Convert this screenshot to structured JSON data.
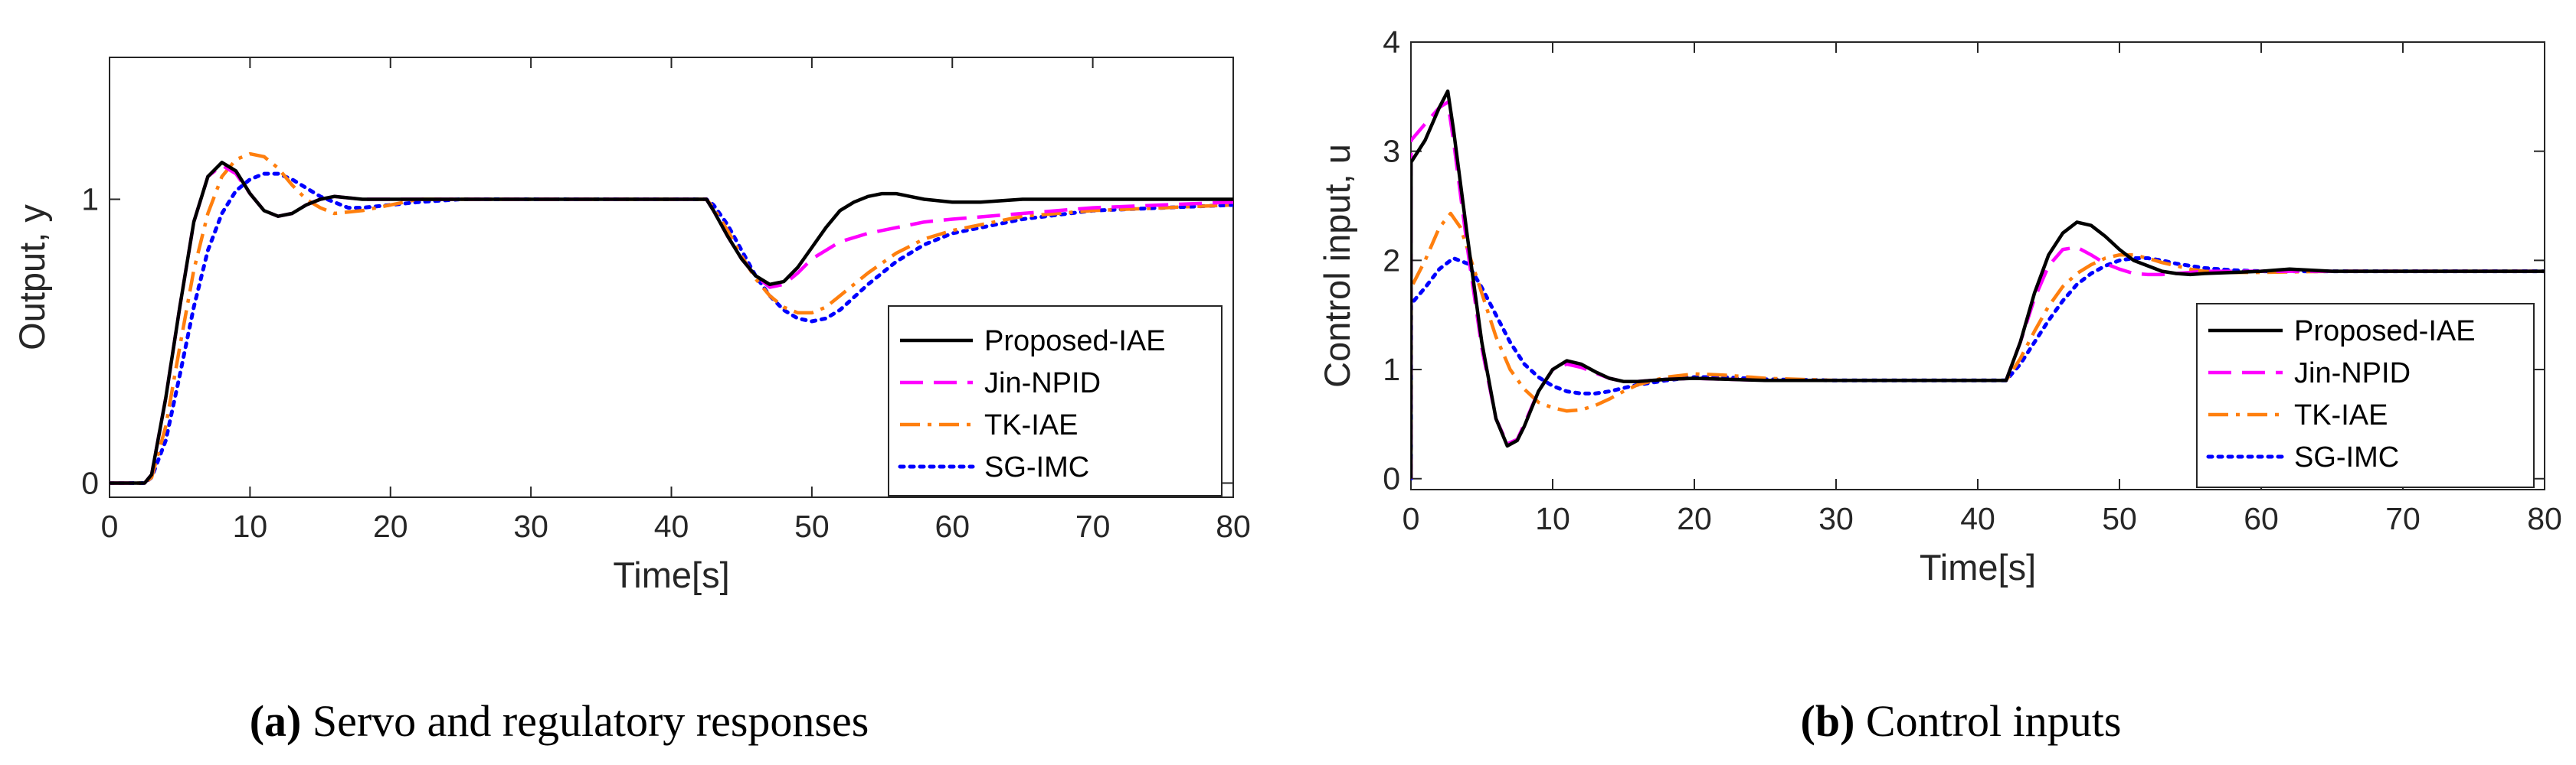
{
  "figure": {
    "captions": [
      {
        "tag": "(a)",
        "text": " Servo and regulatory responses"
      },
      {
        "tag": "(b)",
        "text": " Control inputs"
      }
    ]
  },
  "chart_data": [
    {
      "type": "line",
      "id": "a",
      "title": "",
      "xlabel": "Time[s]",
      "ylabel": "Output, y",
      "xlim": [
        0,
        80
      ],
      "ylim": [
        -0.05,
        1.5
      ],
      "xticks": [
        0,
        10,
        20,
        30,
        40,
        50,
        60,
        70,
        80
      ],
      "yticks": [
        0,
        1
      ],
      "grid": false,
      "legend_position": "bottom-right",
      "series": [
        {
          "name": "Proposed-IAE",
          "color": "#000000",
          "dash": "solid",
          "x": [
            0,
            2.5,
            3,
            4,
            5,
            6,
            7,
            8,
            9,
            10,
            11,
            12,
            13,
            14,
            15,
            16,
            18,
            20,
            25,
            30,
            35,
            40,
            42.5,
            43,
            44,
            45,
            46,
            47,
            48,
            49,
            50,
            51,
            52,
            53,
            54,
            55,
            56,
            57,
            58,
            60,
            62,
            65,
            70,
            75,
            80
          ],
          "y": [
            0,
            0,
            0.03,
            0.3,
            0.62,
            0.92,
            1.08,
            1.13,
            1.1,
            1.02,
            0.96,
            0.94,
            0.95,
            0.98,
            1.0,
            1.01,
            1.0,
            1.0,
            1.0,
            1.0,
            1.0,
            1.0,
            1.0,
            0.96,
            0.87,
            0.79,
            0.73,
            0.7,
            0.71,
            0.76,
            0.83,
            0.9,
            0.96,
            0.99,
            1.01,
            1.02,
            1.02,
            1.01,
            1.0,
            0.99,
            0.99,
            1.0,
            1.0,
            1.0,
            1.0
          ]
        },
        {
          "name": "Jin-NPID",
          "color": "#ff00ff",
          "dash": "dashed",
          "x": [
            0,
            2.5,
            3,
            4,
            5,
            6,
            7,
            8,
            9,
            10,
            11,
            12,
            13,
            14,
            15,
            16,
            18,
            20,
            25,
            30,
            35,
            40,
            42.5,
            43,
            44,
            45,
            46,
            47,
            48,
            49,
            50,
            52,
            54,
            56,
            58,
            60,
            65,
            70,
            75,
            80
          ],
          "y": [
            0,
            0,
            0.03,
            0.3,
            0.62,
            0.92,
            1.08,
            1.12,
            1.09,
            1.02,
            0.96,
            0.94,
            0.95,
            0.98,
            1.0,
            1.01,
            1.0,
            1.0,
            1.0,
            1.0,
            1.0,
            1.0,
            1.0,
            0.96,
            0.87,
            0.79,
            0.73,
            0.69,
            0.7,
            0.74,
            0.79,
            0.85,
            0.88,
            0.9,
            0.92,
            0.93,
            0.95,
            0.97,
            0.98,
            0.99
          ]
        },
        {
          "name": "TK-IAE",
          "color": "#ff7f0e",
          "dash": "dashdot",
          "x": [
            0,
            2.5,
            3,
            4,
            5,
            6,
            7,
            8,
            9,
            10,
            11,
            12,
            13,
            14,
            15,
            16,
            18,
            20,
            22,
            25,
            30,
            40,
            42.5,
            43,
            44,
            45,
            46,
            47,
            48,
            49,
            50,
            51,
            52,
            54,
            56,
            58,
            60,
            65,
            70,
            75,
            80
          ],
          "y": [
            0,
            0,
            0.02,
            0.2,
            0.48,
            0.75,
            0.95,
            1.08,
            1.14,
            1.16,
            1.15,
            1.11,
            1.05,
            1.0,
            0.97,
            0.95,
            0.96,
            0.98,
            1.0,
            1.0,
            1.0,
            1.0,
            1.0,
            0.97,
            0.89,
            0.8,
            0.72,
            0.66,
            0.62,
            0.6,
            0.6,
            0.62,
            0.66,
            0.74,
            0.81,
            0.86,
            0.89,
            0.94,
            0.96,
            0.97,
            0.98
          ]
        },
        {
          "name": "SG-IMC",
          "color": "#0000ff",
          "dash": "dotted",
          "x": [
            0,
            2.5,
            3,
            4,
            5,
            6,
            7,
            8,
            9,
            10,
            11,
            12,
            13,
            14,
            15,
            16,
            17,
            18,
            20,
            22,
            25,
            30,
            40,
            42.5,
            43,
            44,
            45,
            46,
            47,
            48,
            49,
            50,
            51,
            52,
            54,
            56,
            58,
            60,
            65,
            70,
            75,
            80
          ],
          "y": [
            0,
            0,
            0.02,
            0.15,
            0.38,
            0.62,
            0.82,
            0.95,
            1.03,
            1.07,
            1.09,
            1.09,
            1.07,
            1.04,
            1.01,
            0.99,
            0.97,
            0.97,
            0.98,
            0.99,
            1.0,
            1.0,
            1.0,
            1.0,
            0.98,
            0.91,
            0.82,
            0.73,
            0.66,
            0.61,
            0.58,
            0.57,
            0.58,
            0.61,
            0.7,
            0.78,
            0.84,
            0.88,
            0.93,
            0.96,
            0.97,
            0.98
          ]
        }
      ]
    },
    {
      "type": "line",
      "id": "b",
      "title": "",
      "xlabel": "Time[s]",
      "ylabel": "Control input, u",
      "xlim": [
        0,
        80
      ],
      "ylim": [
        -0.1,
        4
      ],
      "xticks": [
        0,
        10,
        20,
        30,
        40,
        50,
        60,
        70,
        80
      ],
      "yticks": [
        0,
        1,
        2,
        3,
        4
      ],
      "grid": false,
      "legend_position": "bottom-right",
      "series": [
        {
          "name": "Proposed-IAE",
          "color": "#000000",
          "dash": "solid",
          "x": [
            0,
            0.01,
            1,
            2,
            2.6,
            3,
            4,
            5,
            6,
            6.8,
            7.5,
            8,
            9,
            10,
            11,
            12,
            13,
            14,
            15,
            16,
            18,
            20,
            25,
            30,
            40,
            42,
            43,
            44,
            45,
            46,
            47,
            48,
            49,
            50,
            51,
            52,
            53,
            54,
            55,
            56,
            58,
            60,
            62,
            65,
            70,
            80
          ],
          "y": [
            0,
            2.9,
            3.1,
            3.4,
            3.55,
            3.2,
            2.2,
            1.25,
            0.55,
            0.3,
            0.35,
            0.48,
            0.8,
            1.0,
            1.08,
            1.05,
            0.98,
            0.92,
            0.89,
            0.89,
            0.91,
            0.92,
            0.9,
            0.9,
            0.9,
            0.9,
            1.25,
            1.7,
            2.05,
            2.25,
            2.35,
            2.32,
            2.22,
            2.1,
            2.0,
            1.95,
            1.9,
            1.88,
            1.87,
            1.88,
            1.89,
            1.9,
            1.92,
            1.9,
            1.9,
            1.9
          ]
        },
        {
          "name": "Jin-NPID",
          "color": "#ff00ff",
          "dash": "dashed",
          "x": [
            0,
            0.01,
            1,
            2,
            2.6,
            3,
            4,
            5,
            6,
            6.8,
            7.5,
            8,
            9,
            10,
            11,
            12,
            13,
            14,
            15,
            16,
            18,
            20,
            25,
            30,
            40,
            42,
            43,
            44,
            45,
            46,
            47,
            48,
            49,
            50,
            51,
            52,
            53,
            54,
            55,
            56,
            58,
            60,
            62,
            65,
            70,
            80
          ],
          "y": [
            0,
            3.1,
            3.25,
            3.4,
            3.45,
            3.1,
            2.1,
            1.2,
            0.55,
            0.32,
            0.36,
            0.5,
            0.8,
            1.0,
            1.05,
            1.02,
            0.97,
            0.92,
            0.89,
            0.89,
            0.91,
            0.92,
            0.9,
            0.9,
            0.9,
            0.9,
            1.25,
            1.65,
            1.95,
            2.1,
            2.12,
            2.05,
            1.97,
            1.92,
            1.88,
            1.87,
            1.87,
            1.88,
            1.89,
            1.9,
            1.9,
            1.9,
            1.9,
            1.9,
            1.9,
            1.9
          ]
        },
        {
          "name": "TK-IAE",
          "color": "#ff7f0e",
          "dash": "dashdot",
          "x": [
            0,
            0.01,
            1,
            2,
            2.8,
            3.5,
            4,
            5,
            6,
            7,
            8,
            9,
            10,
            11,
            12,
            13,
            14,
            15,
            16,
            18,
            20,
            22,
            25,
            30,
            40,
            42,
            43,
            44,
            45,
            46,
            47,
            48,
            49,
            50,
            51,
            52,
            53,
            54,
            55,
            56,
            58,
            60,
            65,
            70,
            80
          ],
          "y": [
            0,
            1.75,
            2.0,
            2.3,
            2.43,
            2.3,
            2.1,
            1.7,
            1.3,
            1.0,
            0.82,
            0.7,
            0.65,
            0.62,
            0.63,
            0.67,
            0.73,
            0.8,
            0.86,
            0.93,
            0.96,
            0.95,
            0.92,
            0.9,
            0.9,
            0.9,
            1.1,
            1.35,
            1.58,
            1.76,
            1.88,
            1.96,
            2.02,
            2.05,
            2.05,
            2.02,
            1.98,
            1.95,
            1.92,
            1.9,
            1.89,
            1.89,
            1.9,
            1.9,
            1.9
          ]
        },
        {
          "name": "SG-IMC",
          "color": "#0000ff",
          "dash": "dotted",
          "x": [
            0,
            0.01,
            1,
            2,
            3,
            4,
            5,
            6,
            7,
            8,
            9,
            10,
            11,
            12,
            13,
            14,
            15,
            16,
            18,
            20,
            22,
            25,
            30,
            40,
            42,
            43,
            44,
            45,
            46,
            47,
            48,
            49,
            50,
            51,
            52,
            53,
            54,
            55,
            56,
            58,
            60,
            65,
            70,
            80
          ],
          "y": [
            0,
            1.6,
            1.75,
            1.92,
            2.02,
            1.97,
            1.75,
            1.5,
            1.25,
            1.05,
            0.93,
            0.85,
            0.8,
            0.78,
            0.78,
            0.8,
            0.83,
            0.86,
            0.9,
            0.93,
            0.93,
            0.91,
            0.9,
            0.9,
            0.9,
            1.05,
            1.25,
            1.45,
            1.63,
            1.78,
            1.88,
            1.95,
            2.0,
            2.02,
            2.02,
            2.0,
            1.97,
            1.95,
            1.93,
            1.91,
            1.9,
            1.9,
            1.9,
            1.9
          ]
        }
      ]
    }
  ]
}
